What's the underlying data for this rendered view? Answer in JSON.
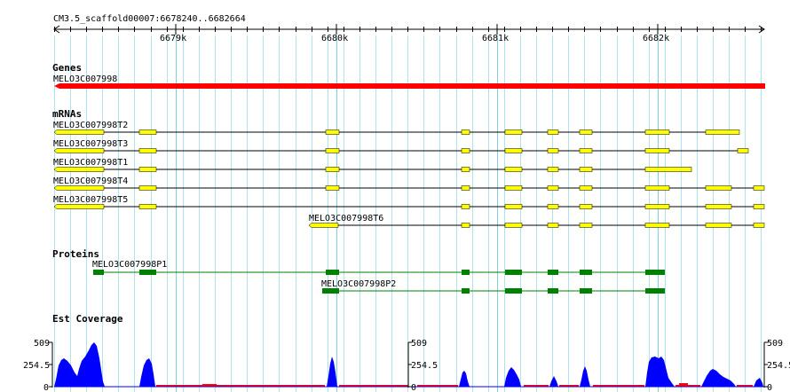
{
  "coordinates": "CM3.5_scaffold00007:6678240..6682664",
  "ruler": {
    "ticks": [
      "6679k",
      "6680k",
      "6681k",
      "6682k"
    ]
  },
  "tracks": {
    "genes": {
      "title": "Genes",
      "items": [
        {
          "label": "MELO3C007998",
          "color": "#ff0000"
        }
      ]
    },
    "mrnas": {
      "title": "mRNAs",
      "color": "#ffff00",
      "items": [
        {
          "label": "MELO3C007998T2"
        },
        {
          "label": "MELO3C007998T3"
        },
        {
          "label": "MELO3C007998T1"
        },
        {
          "label": "MELO3C007998T4"
        },
        {
          "label": "MELO3C007998T5"
        },
        {
          "label": "MELO3C007998T6"
        }
      ]
    },
    "proteins": {
      "title": "Proteins",
      "color": "#008000",
      "items": [
        {
          "label": "MELO3C007998P1"
        },
        {
          "label": "MELO3C007998P2"
        }
      ]
    },
    "est_coverage": {
      "title": "Est Coverage",
      "ymax": "509",
      "ymid": "254.5",
      "ymin": "0",
      "fill_color": "#0000ff",
      "zero_color": "#ff0000"
    }
  }
}
